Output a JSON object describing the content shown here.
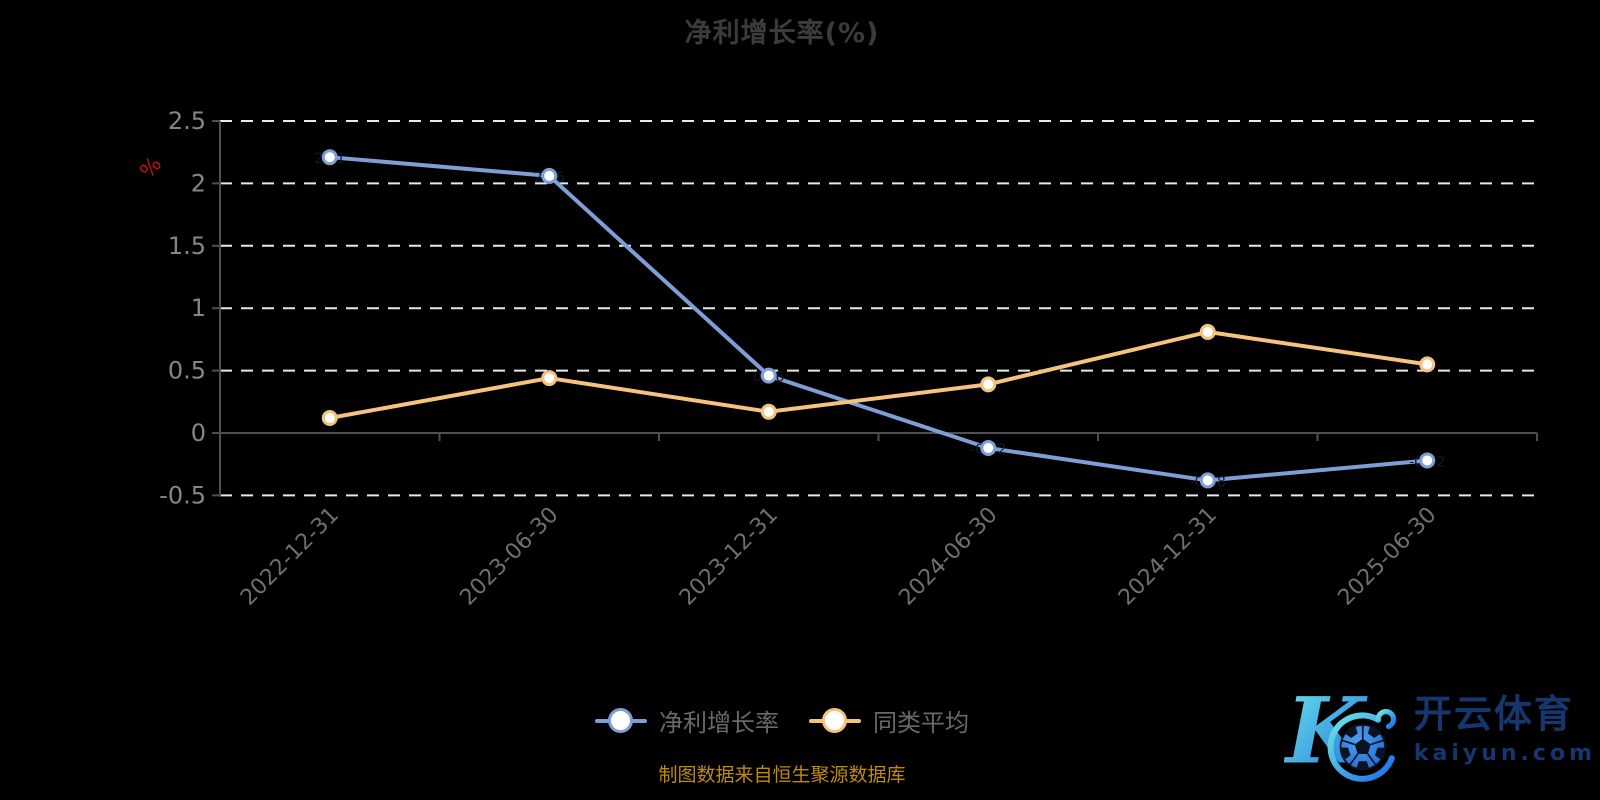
{
  "title": "净利增长率(%)",
  "y_axis_name": "%",
  "caption": "制图数据来自恒生聚源数据库",
  "watermark": {
    "monogram": "K",
    "brand_cn": "开云体育",
    "brand_url": "kaiyun.com"
  },
  "colors": {
    "background": "#000000",
    "title": "#3b3b3b",
    "axis_line": "#4f4f4f",
    "grid_line": "#e8e8e8",
    "y_tick_label": "#868686",
    "x_tick_label": "#6f6f6f",
    "y_axis_name": "#c40f0f",
    "legend_label": "#696969",
    "caption": "#bd8a10",
    "series_blue": "#7e9fd6",
    "series_orange": "#f4c37d",
    "marker_fill": "#ffffff",
    "point_label": "#10192e",
    "watermark_text": "#17356e",
    "logo_cyan": "#6fe7e2",
    "logo_blue": "#1a6fe8"
  },
  "chart_data": {
    "type": "line",
    "title": "净利增长率(%)",
    "categories": [
      "2022-12-31",
      "2023-06-30",
      "2023-12-31",
      "2024-06-30",
      "2024-12-31",
      "2025-06-30"
    ],
    "series": [
      {
        "name": "净利增长率",
        "color": "#7e9fd6",
        "values": [
          2.21,
          2.06,
          0.46,
          -0.12,
          -0.38,
          -0.22
        ]
      },
      {
        "name": "同类平均",
        "color": "#f4c37d",
        "values": [
          0.12,
          0.44,
          0.17,
          0.39,
          0.81,
          0.55
        ]
      }
    ],
    "xlabel": "",
    "ylabel": "%",
    "ylim": [
      -0.5,
      2.5
    ],
    "yticks": [
      2.5,
      2,
      1.5,
      1,
      0.5,
      0,
      -0.5
    ],
    "grid": "horizontal dashed, no line at 0 (solid axis)",
    "legend_position": "bottom center",
    "point_labels_visible_faint_dark_on_series": "净利增长率"
  }
}
